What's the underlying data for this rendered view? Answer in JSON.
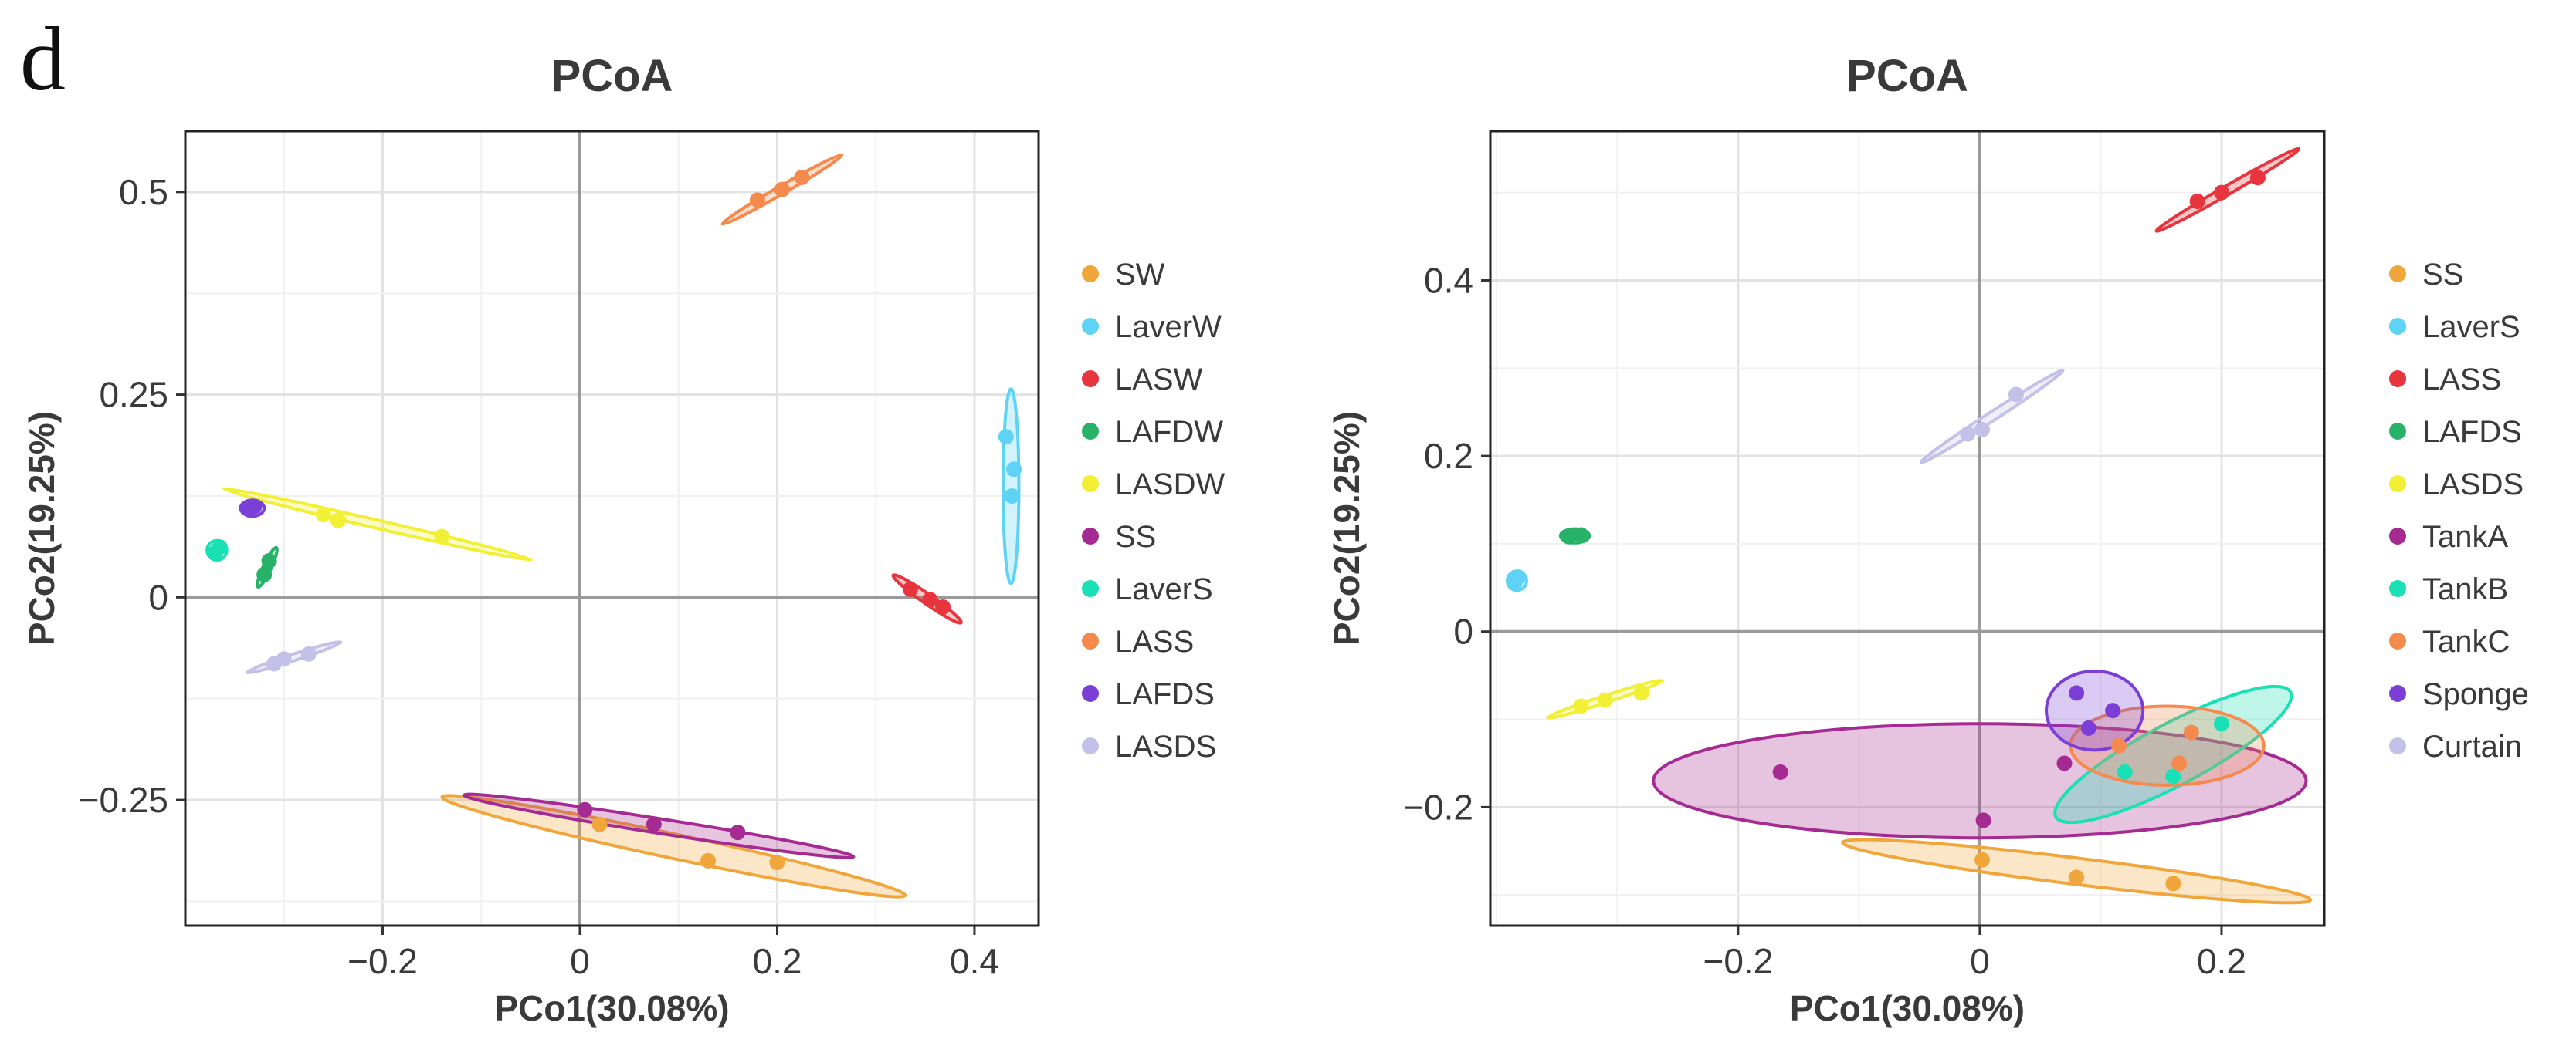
{
  "panel_label": "d",
  "chart_data": [
    {
      "type": "scatter",
      "title": "PCoA",
      "xlabel": "PCo1(30.08%)",
      "ylabel": "PCo2(19.25%)",
      "xlim": [
        -0.4,
        0.465
      ],
      "ylim": [
        -0.405,
        0.575
      ],
      "xticks": [
        -0.2,
        0,
        0.2,
        0.4
      ],
      "xtick_labels": [
        "−0.2",
        "0",
        "0.2",
        "0.4"
      ],
      "yticks": [
        -0.25,
        0,
        0.25,
        0.5
      ],
      "ytick_labels": [
        "−0.25",
        "0",
        "0.25",
        "0.5"
      ],
      "grid": true,
      "legend_position": "right",
      "series": [
        {
          "name": "SW",
          "color": "#F0A63A",
          "points": [
            [
              0.02,
              -0.28
            ],
            [
              0.13,
              -0.325
            ],
            [
              0.2,
              -0.327
            ]
          ],
          "ellipse": {
            "cx": 0.095,
            "cy": -0.307,
            "rx": 0.24,
            "ry": 0.015,
            "angle_deg": -12
          }
        },
        {
          "name": "LaverW",
          "color": "#5FD3F5",
          "points": [
            [
              0.432,
              0.198
            ],
            [
              0.44,
              0.158
            ],
            [
              0.438,
              0.125
            ]
          ],
          "ellipse": {
            "cx": 0.437,
            "cy": 0.137,
            "rx": 0.008,
            "ry": 0.12,
            "angle_deg": 0
          }
        },
        {
          "name": "LASW",
          "color": "#E8353D",
          "points": [
            [
              0.335,
              0.01
            ],
            [
              0.355,
              -0.003
            ],
            [
              0.368,
              -0.012
            ]
          ],
          "ellipse": {
            "cx": 0.352,
            "cy": -0.002,
            "rx": 0.042,
            "ry": 0.006,
            "angle_deg": -35
          }
        },
        {
          "name": "LAFDW",
          "color": "#27B268",
          "points": [
            [
              -0.32,
              0.028
            ],
            [
              -0.315,
              0.045
            ]
          ],
          "ellipse": {
            "cx": -0.317,
            "cy": 0.037,
            "rx": 0.022,
            "ry": 0.005,
            "angle_deg": 65
          }
        },
        {
          "name": "LASDW",
          "color": "#F2F035",
          "points": [
            [
              -0.26,
              0.102
            ],
            [
              -0.245,
              0.095
            ],
            [
              -0.14,
              0.075
            ]
          ],
          "ellipse": {
            "cx": -0.205,
            "cy": 0.09,
            "rx": 0.16,
            "ry": 0.005,
            "angle_deg": -13
          }
        },
        {
          "name": "SS",
          "color": "#A52A91",
          "points": [
            [
              0.005,
              -0.262
            ],
            [
              0.075,
              -0.28
            ],
            [
              0.16,
              -0.29
            ]
          ],
          "ellipse": {
            "cx": 0.08,
            "cy": -0.282,
            "rx": 0.2,
            "ry": 0.009,
            "angle_deg": -9
          }
        },
        {
          "name": "LaverS",
          "color": "#19E0B5",
          "points": [
            [
              -0.37,
              0.055
            ],
            [
              -0.365,
              0.062
            ]
          ],
          "ellipse": {
            "cx": -0.368,
            "cy": 0.058,
            "rx": 0.01,
            "ry": 0.012,
            "angle_deg": 0
          }
        },
        {
          "name": "LASS",
          "color": "#F58A4E",
          "points": [
            [
              0.18,
              0.49
            ],
            [
              0.205,
              0.503
            ],
            [
              0.225,
              0.518
            ]
          ],
          "ellipse": {
            "cx": 0.205,
            "cy": 0.503,
            "rx": 0.07,
            "ry": 0.005,
            "angle_deg": 30
          }
        },
        {
          "name": "LAFDS",
          "color": "#7B3FD8",
          "points": [
            [
              -0.33,
              0.112
            ],
            [
              -0.335,
              0.108
            ]
          ],
          "ellipse": {
            "cx": -0.332,
            "cy": 0.11,
            "rx": 0.012,
            "ry": 0.01,
            "angle_deg": 0
          }
        },
        {
          "name": "LASDS",
          "color": "#C4C1E8",
          "points": [
            [
              -0.31,
              -0.082
            ],
            [
              -0.3,
              -0.076
            ],
            [
              -0.275,
              -0.07
            ]
          ],
          "ellipse": {
            "cx": -0.29,
            "cy": -0.074,
            "rx": 0.05,
            "ry": 0.004,
            "angle_deg": 18
          }
        }
      ]
    },
    {
      "type": "scatter",
      "title": "PCoA",
      "xlabel": "PCo1(30.08%)",
      "ylabel": "PCo2(19.25%)",
      "xlim": [
        -0.405,
        0.285
      ],
      "ylim": [
        -0.335,
        0.57
      ],
      "xticks": [
        -0.2,
        0,
        0.2
      ],
      "xtick_labels": [
        "−0.2",
        "0",
        "0.2"
      ],
      "yticks": [
        -0.2,
        0,
        0.2,
        0.4
      ],
      "ytick_labels": [
        "−0.2",
        "0",
        "0.2",
        "0.4"
      ],
      "grid": true,
      "legend_position": "right",
      "series": [
        {
          "name": "SS",
          "color": "#F0A63A",
          "points": [
            [
              0.002,
              -0.26
            ],
            [
              0.08,
              -0.28
            ],
            [
              0.16,
              -0.287
            ]
          ],
          "ellipse": {
            "cx": 0.08,
            "cy": -0.273,
            "rx": 0.195,
            "ry": 0.015,
            "angle_deg": -7
          }
        },
        {
          "name": "LaverS",
          "color": "#5FD3F5",
          "points": [
            [
              -0.385,
              0.055
            ],
            [
              -0.382,
              0.062
            ]
          ],
          "ellipse": {
            "cx": -0.383,
            "cy": 0.058,
            "rx": 0.008,
            "ry": 0.011,
            "angle_deg": 0
          }
        },
        {
          "name": "LASS",
          "color": "#E8353D",
          "points": [
            [
              0.18,
              0.49
            ],
            [
              0.2,
              0.5
            ],
            [
              0.23,
              0.517
            ]
          ],
          "ellipse": {
            "cx": 0.205,
            "cy": 0.503,
            "rx": 0.068,
            "ry": 0.005,
            "angle_deg": 30
          }
        },
        {
          "name": "LAFDS",
          "color": "#27B268",
          "points": [
            [
              -0.34,
              0.108
            ],
            [
              -0.33,
              0.11
            ]
          ],
          "ellipse": {
            "cx": -0.335,
            "cy": 0.109,
            "rx": 0.012,
            "ry": 0.008,
            "angle_deg": 0
          }
        },
        {
          "name": "LASDS",
          "color": "#F2F035",
          "points": [
            [
              -0.33,
              -0.085
            ],
            [
              -0.31,
              -0.078
            ],
            [
              -0.28,
              -0.07
            ]
          ],
          "ellipse": {
            "cx": -0.31,
            "cy": -0.077,
            "rx": 0.05,
            "ry": 0.004,
            "angle_deg": 18
          }
        },
        {
          "name": "TankA",
          "color": "#A52A91",
          "points": [
            [
              -0.165,
              -0.16
            ],
            [
              0.003,
              -0.215
            ],
            [
              0.07,
              -0.15
            ]
          ],
          "ellipse": {
            "cx": 0.0,
            "cy": -0.17,
            "rx": 0.27,
            "ry": 0.065,
            "angle_deg": 0
          }
        },
        {
          "name": "TankB",
          "color": "#19E0B5",
          "points": [
            [
              0.2,
              -0.105
            ],
            [
              0.12,
              -0.16
            ],
            [
              0.16,
              -0.165
            ]
          ],
          "ellipse": {
            "cx": 0.16,
            "cy": -0.14,
            "rx": 0.11,
            "ry": 0.035,
            "angle_deg": 28
          }
        },
        {
          "name": "TankC",
          "color": "#F58A4E",
          "points": [
            [
              0.115,
              -0.13
            ],
            [
              0.175,
              -0.115
            ],
            [
              0.165,
              -0.15
            ]
          ],
          "ellipse": {
            "cx": 0.155,
            "cy": -0.13,
            "rx": 0.08,
            "ry": 0.045,
            "angle_deg": 0
          }
        },
        {
          "name": "Sponge",
          "color": "#7B3FD8",
          "points": [
            [
              0.08,
              -0.07
            ],
            [
              0.11,
              -0.09
            ],
            [
              0.09,
              -0.11
            ]
          ],
          "ellipse": {
            "cx": 0.095,
            "cy": -0.09,
            "rx": 0.04,
            "ry": 0.045,
            "angle_deg": 0
          }
        },
        {
          "name": "Curtain",
          "color": "#C4C1E8",
          "points": [
            [
              -0.01,
              0.225
            ],
            [
              0.002,
              0.23
            ],
            [
              0.03,
              0.27
            ]
          ],
          "ellipse": {
            "cx": 0.01,
            "cy": 0.245,
            "rx": 0.07,
            "ry": 0.005,
            "angle_deg": 33
          }
        }
      ]
    }
  ]
}
